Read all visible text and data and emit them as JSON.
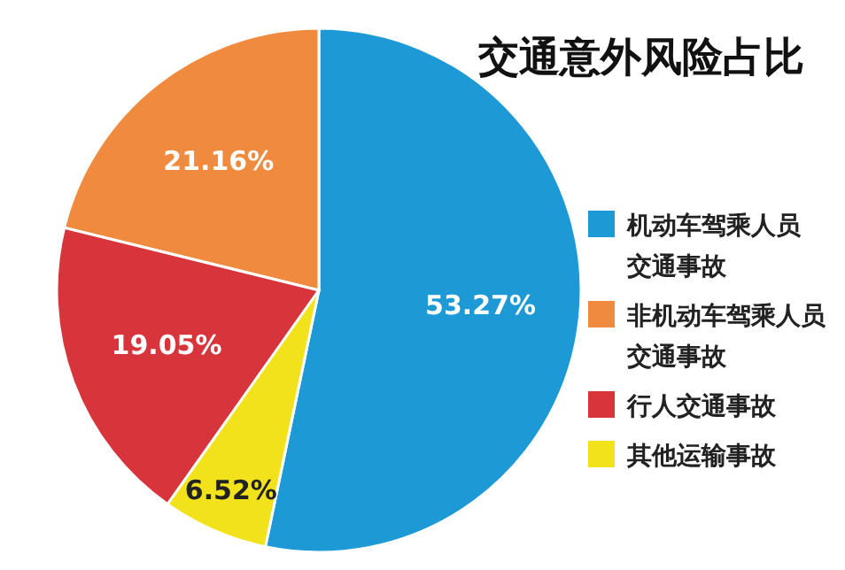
{
  "chart_data": {
    "type": "pie",
    "title": "交通意外风险占比",
    "categories": [
      "机动车驾乘人员交通事故",
      "非机动车驾乘人员交通事故",
      "行人交通事故",
      "其他运输事故"
    ],
    "values": [
      53.27,
      21.16,
      19.05,
      6.52
    ],
    "value_labels": [
      "53.27%",
      "21.16%",
      "19.05%",
      "6.52%"
    ],
    "colors": [
      "#1d9ad6",
      "#f08a3e",
      "#d8343c",
      "#f1e21c"
    ],
    "legend": "right"
  }
}
